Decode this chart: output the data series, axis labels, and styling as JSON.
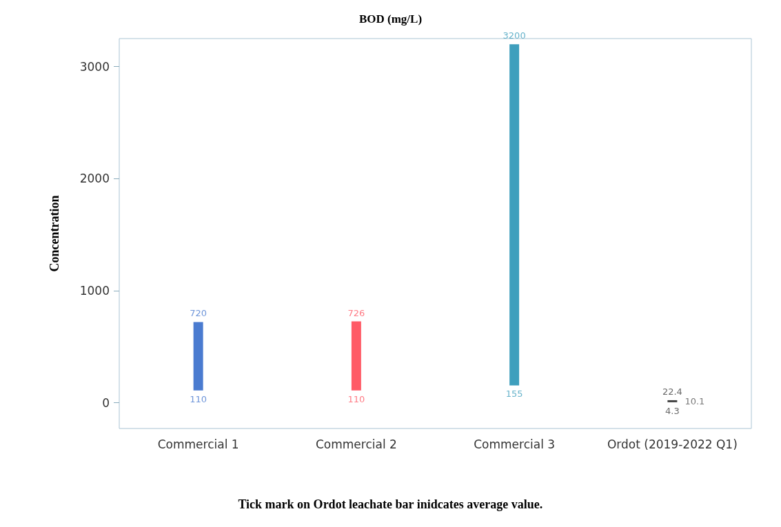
{
  "chart_data": {
    "type": "bar",
    "title": "BOD (mg/L)",
    "ylabel": "Concentration",
    "categories": [
      "Commercial 1",
      "Commercial 2",
      "Commercial 3",
      "Ordot (2019-2022 Q1)"
    ],
    "base": [
      110,
      110,
      155,
      4.3
    ],
    "values": [
      610,
      616,
      3045,
      18.1
    ],
    "colors": [
      "#4a7bd0",
      "#ff5a66",
      "#3f9fbd",
      "#404040"
    ],
    "ylim": [
      -230,
      3250
    ],
    "yticks": [
      0,
      1000,
      2000,
      3000
    ],
    "grid": false,
    "annotations": [
      {
        "text": "720",
        "x": "Commercial 1",
        "y": 720
      },
      {
        "text": "110",
        "x": "Commercial 1",
        "y": 110
      },
      {
        "text": "726",
        "x": "Commercial 2",
        "y": 726
      },
      {
        "text": "110",
        "x": "Commercial 2",
        "y": 110
      },
      {
        "text": "3200",
        "x": "Commercial 3",
        "y": 3200
      },
      {
        "text": "155",
        "x": "Commercial 3",
        "y": 155
      },
      {
        "text": "22.4",
        "x": "Ordot (2019-2022 Q1)",
        "y": 22.4
      },
      {
        "text": "4.3",
        "x": "Ordot (2019-2022 Q1)",
        "y": 4.3
      },
      {
        "text": "10.1",
        "x": "Ordot (2019-2022 Q1)",
        "y": 10.1
      },
      "Tick mark on Ordot leachate bar inidcates average value."
    ]
  }
}
